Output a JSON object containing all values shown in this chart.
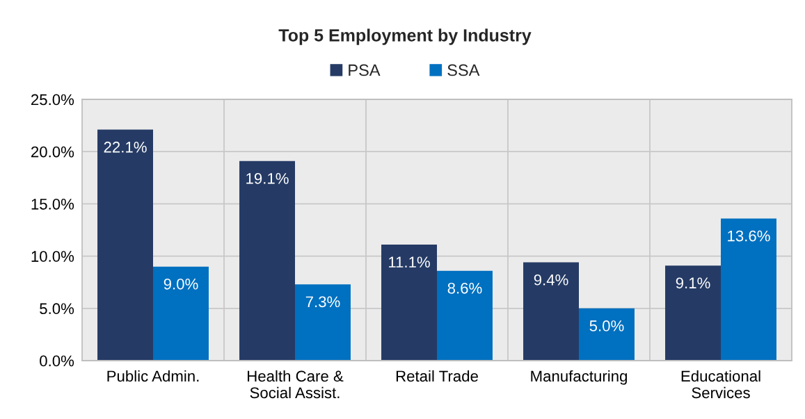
{
  "chart_data": {
    "type": "bar",
    "title": "Top 5 Employment by Industry",
    "categories": [
      "Public Admin.",
      "Health Care &\nSocial Assist.",
      "Retail Trade",
      "Manufacturing",
      "Educational\nServices"
    ],
    "series": [
      {
        "name": "PSA",
        "color": "#253b65",
        "values": [
          22.1,
          19.1,
          11.1,
          9.4,
          9.1
        ],
        "value_labels": [
          "22.1%",
          "19.1%",
          "11.1%",
          "9.4%",
          "9.1%"
        ]
      },
      {
        "name": "SSA",
        "color": "#0070c0",
        "values": [
          9.0,
          7.3,
          8.6,
          5.0,
          13.6
        ],
        "value_labels": [
          "9.0%",
          "7.3%",
          "8.6%",
          "5.0%",
          "13.6%"
        ]
      }
    ],
    "ylim": [
      0,
      25
    ],
    "yticks": [
      {
        "value": 0,
        "label": "0.0%"
      },
      {
        "value": 5,
        "label": "5.0%"
      },
      {
        "value": 10,
        "label": "10.0%"
      },
      {
        "value": 15,
        "label": "15.0%"
      },
      {
        "value": 20,
        "label": "20.0%"
      },
      {
        "value": 25,
        "label": "25.0%"
      }
    ],
    "grid": true,
    "legend": "top"
  }
}
